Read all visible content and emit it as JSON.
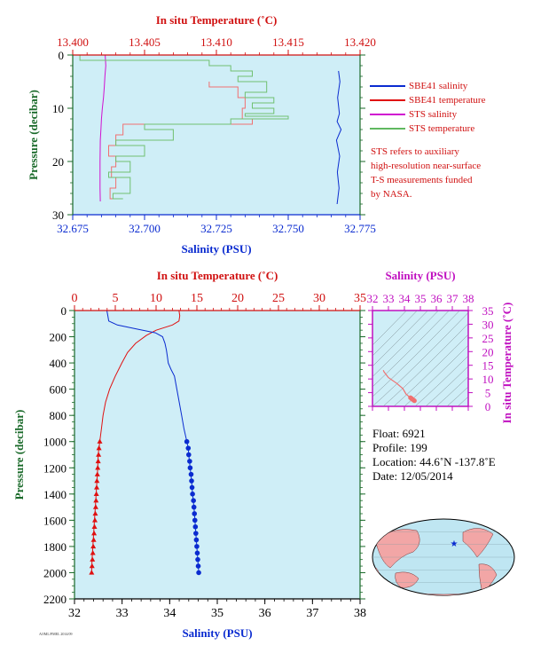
{
  "top_panel": {
    "top_axis_title": "In situ Temperature (˚C)",
    "bottom_axis_title": "Salinity (PSU)",
    "left_axis_title": "Pressure (decibar)",
    "temp_ticks": [
      "13.400",
      "13.405",
      "13.410",
      "13.415",
      "13.420"
    ],
    "sal_ticks": [
      "32.675",
      "32.700",
      "32.725",
      "32.750",
      "32.775"
    ],
    "pres_ticks": [
      "0",
      "10",
      "20",
      "30"
    ]
  },
  "legend": {
    "items": [
      {
        "label": "SBE41 salinity",
        "color": "#0a2bd0"
      },
      {
        "label": "SBE41 temperature",
        "color": "#e01010"
      },
      {
        "label": "STS salinity",
        "color": "#d010d0"
      },
      {
        "label": "STS temperature",
        "color": "#60b860"
      }
    ],
    "note": [
      "STS refers to auxiliary",
      "high-resolution near-surface",
      "T-S measurements funded",
      "by NASA."
    ]
  },
  "main_panel": {
    "top_axis_title": "In situ Temperature (˚C)",
    "bottom_axis_title": "Salinity (PSU)",
    "left_axis_title": "Pressure (decibar)",
    "temp_ticks": [
      "0",
      "5",
      "10",
      "15",
      "20",
      "25",
      "30",
      "35"
    ],
    "sal_ticks": [
      "32",
      "33",
      "34",
      "35",
      "36",
      "37",
      "38"
    ],
    "pres_ticks": [
      "0",
      "200",
      "400",
      "600",
      "800",
      "1000",
      "1200",
      "1400",
      "1600",
      "1800",
      "2000",
      "2200"
    ]
  },
  "ts_panel": {
    "top_axis_title": "Salinity (PSU)",
    "right_axis_title": "In situ Temperature (˚C)",
    "sal_ticks": [
      "32",
      "33",
      "34",
      "35",
      "36",
      "37",
      "38"
    ],
    "temp_ticks": [
      "0",
      "5",
      "10",
      "15",
      "20",
      "25",
      "30",
      "35"
    ]
  },
  "float_info": {
    "float": "Float:  6921",
    "profile": "Profile:  199",
    "location": "Location:  44.6˚N  -137.8˚E",
    "date": "Date:  12/05/2014"
  },
  "footer_code": "AOML/PMEL 2014/09",
  "colors": {
    "temp_axis": "#d01010",
    "sal_axis": "#0a2bd0",
    "pres_axis": "#1a6a2a",
    "ts_axis": "#c010c0",
    "plot_bg": "#cfeef7"
  },
  "chart_data": [
    {
      "type": "line",
      "title": "",
      "ylabel": "Pressure (decibar)",
      "xlabel_top": "In situ Temperature (˚C)",
      "xlabel_bottom": "Salinity (PSU)",
      "temp_lim": [
        13.4,
        13.42
      ],
      "sal_lim": [
        32.675,
        32.775
      ],
      "pres_lim": [
        0,
        30
      ],
      "y_inverted": true,
      "series": [
        {
          "name": "SBE41 salinity",
          "axis": "salinity",
          "points": [
            [
              32.7675,
              3
            ],
            [
              32.768,
              5
            ],
            [
              32.7672,
              8
            ],
            [
              32.7678,
              11
            ],
            [
              32.767,
              12.5
            ],
            [
              32.7684,
              14
            ],
            [
              32.7668,
              16
            ],
            [
              32.7679,
              19
            ],
            [
              32.7671,
              22
            ],
            [
              32.7677,
              25
            ],
            [
              32.767,
              28
            ]
          ]
        },
        {
          "name": "SBE41 temperature",
          "axis": "temperature",
          "points": [
            [
              13.4095,
              5
            ],
            [
              13.4115,
              6
            ],
            [
              13.412,
              8
            ],
            [
              13.4118,
              10
            ],
            [
              13.4125,
              12
            ],
            [
              13.4035,
              13
            ],
            [
              13.403,
              15
            ],
            [
              13.4025,
              17
            ],
            [
              13.403,
              19
            ],
            [
              13.4027,
              21
            ],
            [
              13.403,
              23
            ],
            [
              13.4026,
              25
            ],
            [
              13.403,
              27
            ]
          ]
        },
        {
          "name": "STS salinity",
          "axis": "salinity",
          "points": [
            [
              32.6863,
              0
            ],
            [
              32.6865,
              2
            ],
            [
              32.6862,
              4
            ],
            [
              32.686,
              6
            ],
            [
              32.6857,
              8
            ],
            [
              32.6853,
              10
            ],
            [
              32.685,
              12
            ],
            [
              32.6848,
              14
            ],
            [
              32.6846,
              16
            ],
            [
              32.6845,
              20
            ],
            [
              32.6845,
              25
            ],
            [
              32.6846,
              27.5
            ]
          ]
        },
        {
          "name": "STS temperature",
          "axis": "temperature",
          "points": [
            [
              13.4005,
              0
            ],
            [
              13.4095,
              1
            ],
            [
              13.411,
              2
            ],
            [
              13.4125,
              3
            ],
            [
              13.4115,
              4
            ],
            [
              13.4135,
              5
            ],
            [
              13.412,
              7
            ],
            [
              13.414,
              8
            ],
            [
              13.4125,
              9
            ],
            [
              13.414,
              10
            ],
            [
              13.412,
              11
            ],
            [
              13.415,
              11.5
            ],
            [
              13.411,
              12
            ],
            [
              13.405,
              13
            ],
            [
              13.407,
              14
            ],
            [
              13.403,
              16
            ],
            [
              13.405,
              17
            ],
            [
              13.403,
              19
            ],
            [
              13.404,
              20
            ],
            [
              13.4025,
              22
            ],
            [
              13.404,
              23
            ],
            [
              13.4028,
              26
            ],
            [
              13.4035,
              27
            ]
          ]
        }
      ]
    },
    {
      "type": "line",
      "title": "",
      "ylabel": "Pressure (decibar)",
      "xlabel_top": "In situ Temperature (˚C)",
      "xlabel_bottom": "Salinity (PSU)",
      "temp_lim": [
        0,
        35
      ],
      "sal_lim": [
        32,
        38
      ],
      "pres_lim": [
        0,
        2200
      ],
      "y_inverted": true,
      "series": [
        {
          "name": "SBE41 temperature",
          "axis": "temperature",
          "points": [
            [
              12.8,
              0
            ],
            [
              12.9,
              40
            ],
            [
              12.8,
              80
            ],
            [
              12.0,
              110
            ],
            [
              10.0,
              150
            ],
            [
              8.8,
              190
            ],
            [
              7.5,
              250
            ],
            [
              6.5,
              320
            ],
            [
              5.8,
              400
            ],
            [
              5.0,
              500
            ],
            [
              4.3,
              600
            ],
            [
              3.8,
              700
            ],
            [
              3.5,
              800
            ],
            [
              3.3,
              900
            ],
            [
              3.1,
              1000
            ],
            [
              3.0,
              1050
            ],
            [
              2.9,
              1100
            ],
            [
              2.85,
              1200
            ],
            [
              2.75,
              1300
            ],
            [
              2.65,
              1400
            ],
            [
              2.55,
              1500
            ],
            [
              2.45,
              1600
            ],
            [
              2.35,
              1700
            ],
            [
              2.25,
              1800
            ],
            [
              2.15,
              1900
            ],
            [
              2.1,
              2000
            ]
          ]
        },
        {
          "name": "SBE41 salinity",
          "axis": "salinity",
          "points": [
            [
              32.68,
              0
            ],
            [
              32.7,
              40
            ],
            [
              32.72,
              80
            ],
            [
              32.9,
              110
            ],
            [
              33.3,
              140
            ],
            [
              33.7,
              170
            ],
            [
              33.85,
              200
            ],
            [
              33.9,
              250
            ],
            [
              33.93,
              300
            ],
            [
              33.95,
              350
            ],
            [
              33.97,
              400
            ],
            [
              34.03,
              450
            ],
            [
              34.1,
              500
            ],
            [
              34.15,
              600
            ],
            [
              34.2,
              700
            ],
            [
              34.25,
              800
            ],
            [
              34.3,
              900
            ],
            [
              34.36,
              1000
            ],
            [
              34.39,
              1050
            ],
            [
              34.4,
              1100
            ],
            [
              34.43,
              1200
            ],
            [
              34.46,
              1300
            ],
            [
              34.48,
              1400
            ],
            [
              34.51,
              1500
            ],
            [
              34.53,
              1600
            ],
            [
              34.55,
              1700
            ],
            [
              34.57,
              1800
            ],
            [
              34.59,
              1900
            ],
            [
              34.61,
              2000
            ]
          ]
        },
        {
          "name": "bottle temperature",
          "axis": "temperature",
          "marker": "triangle",
          "points": [
            [
              3.1,
              1000
            ],
            [
              3.0,
              1050
            ],
            [
              2.95,
              1100
            ],
            [
              2.9,
              1150
            ],
            [
              2.85,
              1200
            ],
            [
              2.8,
              1250
            ],
            [
              2.75,
              1300
            ],
            [
              2.72,
              1350
            ],
            [
              2.68,
              1400
            ],
            [
              2.64,
              1450
            ],
            [
              2.6,
              1500
            ],
            [
              2.55,
              1550
            ],
            [
              2.5,
              1600
            ],
            [
              2.45,
              1650
            ],
            [
              2.4,
              1700
            ],
            [
              2.35,
              1750
            ],
            [
              2.3,
              1800
            ],
            [
              2.25,
              1850
            ],
            [
              2.2,
              1900
            ],
            [
              2.15,
              1950
            ],
            [
              2.1,
              2000
            ]
          ]
        },
        {
          "name": "bottle salinity",
          "axis": "salinity",
          "marker": "circle",
          "points": [
            [
              34.36,
              1000
            ],
            [
              34.39,
              1050
            ],
            [
              34.4,
              1100
            ],
            [
              34.42,
              1150
            ],
            [
              34.43,
              1200
            ],
            [
              34.45,
              1250
            ],
            [
              34.46,
              1300
            ],
            [
              34.47,
              1350
            ],
            [
              34.48,
              1400
            ],
            [
              34.5,
              1450
            ],
            [
              34.51,
              1500
            ],
            [
              34.52,
              1550
            ],
            [
              34.53,
              1600
            ],
            [
              34.54,
              1650
            ],
            [
              34.55,
              1700
            ],
            [
              34.56,
              1750
            ],
            [
              34.57,
              1800
            ],
            [
              34.58,
              1850
            ],
            [
              34.59,
              1900
            ],
            [
              34.6,
              1950
            ],
            [
              34.61,
              2000
            ]
          ]
        }
      ]
    },
    {
      "type": "scatter",
      "title": "",
      "xlabel_top": "Salinity (PSU)",
      "ylabel_right": "In situ Temperature (˚C)",
      "xlim": [
        32,
        38
      ],
      "ylim": [
        0,
        35
      ],
      "series": [
        {
          "name": "T-S profile",
          "points": [
            [
              32.68,
              13.2
            ],
            [
              32.72,
              12.6
            ],
            [
              33.0,
              10.5
            ],
            [
              33.5,
              8.5
            ],
            [
              33.9,
              6.5
            ],
            [
              34.1,
              4.5
            ],
            [
              34.3,
              3.5
            ],
            [
              34.4,
              3.0
            ],
            [
              34.5,
              2.6
            ],
            [
              34.6,
              2.2
            ]
          ]
        }
      ]
    }
  ]
}
